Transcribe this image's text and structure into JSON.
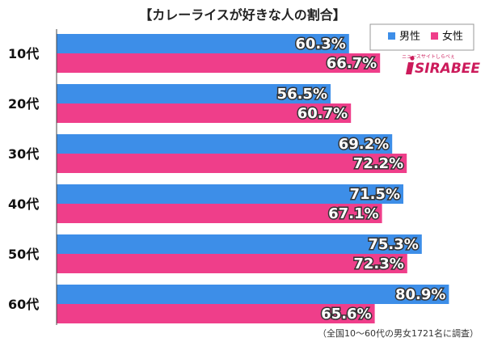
{
  "chart_data": {
    "type": "bar",
    "orientation": "horizontal",
    "title": "【カレーライスが好きな人の割合】",
    "categories": [
      "10代",
      "20代",
      "30代",
      "40代",
      "50代",
      "60代"
    ],
    "series": [
      {
        "name": "男性",
        "color": "#3d8ee8",
        "values": [
          60.3,
          56.5,
          69.2,
          71.5,
          75.3,
          80.9
        ]
      },
      {
        "name": "女性",
        "color": "#ef3e8a",
        "values": [
          66.7,
          60.7,
          72.2,
          67.1,
          72.3,
          65.6
        ]
      }
    ],
    "value_suffix": "%",
    "xlim": [
      0,
      100
    ],
    "grid": false,
    "legend_position": "top-right",
    "footnote": "（全国10〜60代の男女1721名に調査）"
  },
  "logo": {
    "top_text": "ニュースサイトしらべぇ",
    "main_text": "SIRABEE",
    "color": "#cc1b5b"
  }
}
